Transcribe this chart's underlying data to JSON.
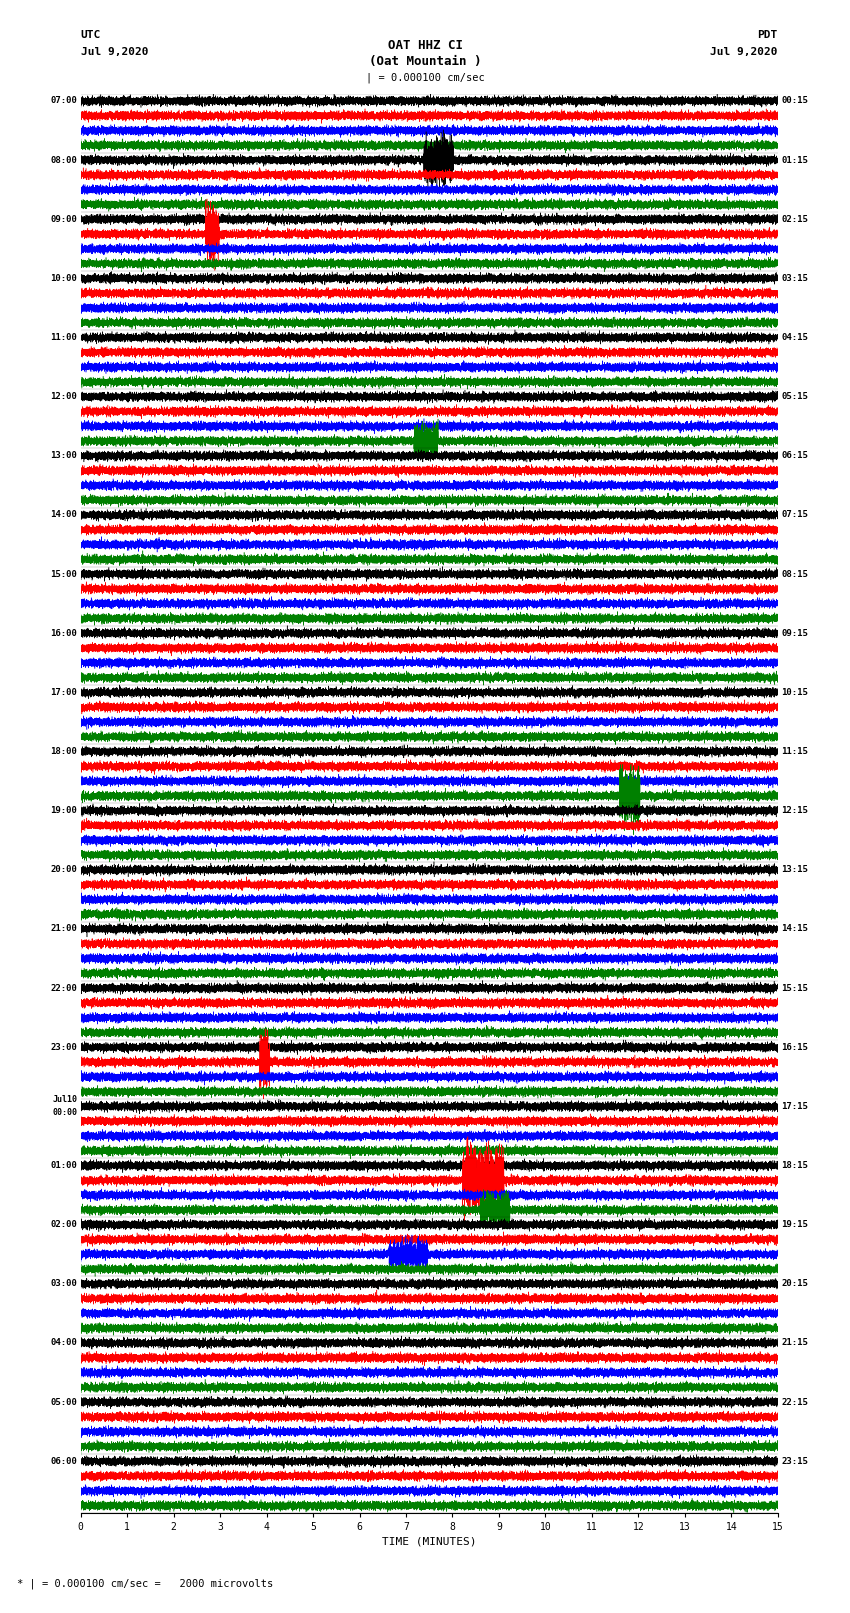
{
  "title_line1": "OAT HHZ CI",
  "title_line2": "(Oat Mountain )",
  "scale_label": "| = 0.000100 cm/sec",
  "footer_label": "* | = 0.000100 cm/sec =   2000 microvolts",
  "xlabel": "TIME (MINUTES)",
  "utc_label": "UTC",
  "utc_date": "Jul 9,2020",
  "pdt_label": "PDT",
  "pdt_date": "Jul 9,2020",
  "left_times": [
    "07:00",
    "08:00",
    "09:00",
    "10:00",
    "11:00",
    "12:00",
    "13:00",
    "14:00",
    "15:00",
    "16:00",
    "17:00",
    "18:00",
    "19:00",
    "20:00",
    "21:00",
    "22:00",
    "23:00",
    "Jul10\n00:00",
    "01:00",
    "02:00",
    "03:00",
    "04:00",
    "05:00",
    "06:00"
  ],
  "right_times": [
    "00:15",
    "01:15",
    "02:15",
    "03:15",
    "04:15",
    "05:15",
    "06:15",
    "07:15",
    "08:15",
    "09:15",
    "10:15",
    "11:15",
    "12:15",
    "13:15",
    "14:15",
    "15:15",
    "16:15",
    "17:15",
    "18:15",
    "19:15",
    "20:15",
    "21:15",
    "22:15",
    "23:15"
  ],
  "n_rows": 24,
  "n_traces": 4,
  "colors": [
    "black",
    "red",
    "blue",
    "green"
  ],
  "duration_minutes": 15,
  "sample_rate": 40,
  "background_color": "white",
  "trace_amplitude": 0.12,
  "fig_width": 8.5,
  "fig_height": 16.13,
  "dpi": 100
}
